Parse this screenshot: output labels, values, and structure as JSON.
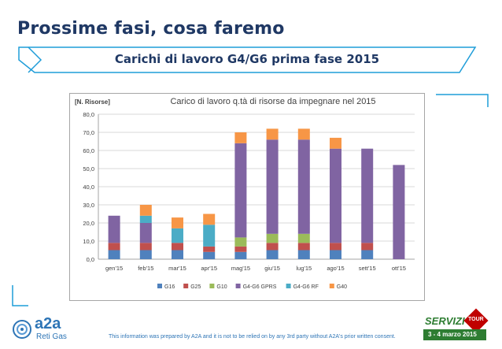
{
  "page": {
    "title": "Prossime fasi, cosa faremo",
    "banner": "Carichi di lavoro G4/G6 prima fase  2015",
    "footer": "This information was prepared by A2A and it is not to be relied on by any 3rd party without A2A's prior written consent.",
    "logo_left": {
      "main": "a2a",
      "sub": "Reti Gas"
    },
    "logo_right": {
      "main": "SERVIZI",
      "sub": "3 - 4 marzo 2015",
      "badge": "TOUR"
    }
  },
  "colors": {
    "title": "#1f3864",
    "banner_border": "#1f9dd9",
    "corner": "#1f9dd9"
  },
  "chart_data": {
    "type": "bar",
    "stacked": true,
    "title": "Carico di lavoro q.tà di risorse da impegnare nel 2015",
    "ylabel": "[N. Risorse]",
    "xlabel": "",
    "ylim": [
      0,
      80
    ],
    "yticks": [
      "0,0",
      "10,0",
      "20,0",
      "30,0",
      "40,0",
      "50,0",
      "60,0",
      "70,0",
      "80,0"
    ],
    "grid": true,
    "legend_position": "bottom",
    "categories": [
      "gen'15",
      "feb'15",
      "mar'15",
      "apr'15",
      "mag'15",
      "giu'15",
      "lug'15",
      "ago'15",
      "sett'15",
      "ott'15"
    ],
    "series": [
      {
        "name": "G16",
        "color": "#4f81bd",
        "values": [
          5,
          5,
          5,
          4,
          4,
          5,
          5,
          5,
          5,
          0
        ]
      },
      {
        "name": "G25",
        "color": "#c0504d",
        "values": [
          4,
          4,
          4,
          3,
          3,
          4,
          4,
          4,
          4,
          0
        ]
      },
      {
        "name": "G10",
        "color": "#9bbb59",
        "values": [
          0,
          0,
          0,
          0,
          5,
          5,
          5,
          0,
          0,
          0
        ]
      },
      {
        "name": "G4-G6 GPRS",
        "color": "#8064a2",
        "values": [
          15,
          11,
          0,
          0,
          52,
          52,
          52,
          52,
          52,
          52
        ]
      },
      {
        "name": "G4-G6 RF",
        "color": "#4bacc6",
        "values": [
          0,
          4,
          8,
          12,
          0,
          0,
          0,
          0,
          0,
          0
        ]
      },
      {
        "name": "G40",
        "color": "#f79646",
        "values": [
          0,
          6,
          6,
          6,
          6,
          6,
          6,
          6,
          0,
          0
        ]
      }
    ]
  }
}
